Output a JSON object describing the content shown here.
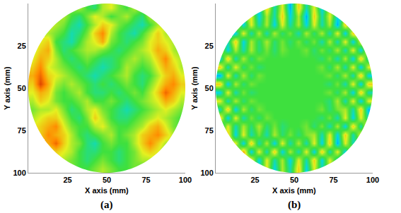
{
  "chart_data": [
    {
      "type": "heatmap",
      "title": "(a)",
      "x_label": "X axis (mm)",
      "y_label": "Y axis (mm)",
      "xlim": [
        0,
        100
      ],
      "ylim": [
        100,
        0
      ],
      "xticks": [
        25,
        50,
        75,
        100
      ],
      "yticks": [
        25,
        50,
        75,
        100
      ],
      "grid": false,
      "zlim": [
        0,
        1
      ],
      "x": [
        2.5,
        7.5,
        12.5,
        17.5,
        22.5,
        27.5,
        32.5,
        37.5,
        42.5,
        47.5,
        52.5,
        57.5,
        62.5,
        67.5,
        72.5,
        77.5,
        82.5,
        87.5,
        92.5,
        97.5
      ],
      "y": [
        2.5,
        7.5,
        12.5,
        17.5,
        22.5,
        27.5,
        32.5,
        37.5,
        42.5,
        47.5,
        52.5,
        57.5,
        62.5,
        67.5,
        72.5,
        77.5,
        82.5,
        87.5,
        92.5,
        97.5
      ],
      "z": [
        [
          null,
          null,
          null,
          null,
          null,
          0.55,
          0.6,
          0.5,
          0.45,
          0.6,
          0.65,
          0.55,
          0.5,
          0.6,
          0.55,
          null,
          null,
          null,
          null,
          null
        ],
        [
          null,
          null,
          null,
          null,
          0.6,
          0.5,
          0.45,
          0.55,
          0.65,
          0.6,
          0.5,
          0.55,
          0.6,
          0.5,
          0.45,
          0.6,
          null,
          null,
          null,
          null
        ],
        [
          null,
          null,
          0.65,
          0.6,
          0.55,
          0.45,
          0.4,
          0.5,
          0.6,
          0.7,
          0.65,
          0.55,
          0.5,
          0.45,
          0.4,
          0.5,
          0.6,
          0.65,
          null,
          null
        ],
        [
          null,
          null,
          0.6,
          0.55,
          0.5,
          0.4,
          0.45,
          0.55,
          0.7,
          0.8,
          0.6,
          0.5,
          0.45,
          0.4,
          0.5,
          0.6,
          0.7,
          0.6,
          null,
          null
        ],
        [
          null,
          0.65,
          0.7,
          0.5,
          0.45,
          0.4,
          0.5,
          0.6,
          0.65,
          0.75,
          0.55,
          0.5,
          0.45,
          0.5,
          0.55,
          0.65,
          0.7,
          0.65,
          0.6,
          null
        ],
        [
          0.6,
          0.7,
          0.75,
          0.55,
          0.45,
          0.5,
          0.55,
          0.6,
          0.6,
          0.55,
          0.5,
          0.45,
          0.5,
          0.55,
          0.6,
          0.65,
          0.75,
          0.7,
          0.6,
          0.55
        ],
        [
          0.65,
          0.75,
          0.7,
          0.6,
          0.5,
          0.45,
          0.5,
          0.55,
          0.5,
          0.45,
          0.45,
          0.5,
          0.55,
          0.6,
          0.55,
          0.6,
          0.7,
          0.8,
          0.65,
          0.6
        ],
        [
          0.7,
          0.8,
          0.65,
          0.6,
          0.55,
          0.5,
          0.45,
          0.5,
          0.45,
          0.4,
          0.45,
          0.5,
          0.6,
          0.55,
          0.5,
          0.55,
          0.65,
          0.75,
          0.7,
          0.6
        ],
        [
          0.75,
          0.85,
          0.7,
          0.65,
          0.6,
          0.55,
          0.5,
          0.45,
          0.4,
          0.45,
          0.5,
          0.55,
          0.6,
          0.5,
          0.45,
          0.5,
          0.6,
          0.7,
          0.75,
          0.65
        ],
        [
          0.7,
          0.9,
          0.75,
          0.6,
          0.55,
          0.6,
          0.55,
          0.5,
          0.45,
          0.5,
          0.45,
          0.5,
          0.55,
          0.5,
          0.45,
          0.55,
          0.65,
          0.75,
          0.8,
          0.7
        ],
        [
          0.65,
          0.75,
          0.7,
          0.55,
          0.5,
          0.55,
          0.6,
          0.5,
          0.45,
          0.45,
          0.5,
          0.45,
          0.5,
          0.55,
          0.5,
          0.6,
          0.7,
          0.85,
          0.75,
          0.65
        ],
        [
          0.6,
          0.7,
          0.65,
          0.55,
          0.5,
          0.5,
          0.55,
          0.6,
          0.5,
          0.5,
          0.55,
          0.5,
          0.45,
          0.5,
          0.55,
          0.6,
          0.65,
          0.75,
          0.7,
          0.6
        ],
        [
          0.55,
          0.6,
          0.6,
          0.65,
          0.55,
          0.45,
          0.5,
          0.6,
          0.65,
          0.55,
          0.5,
          0.45,
          0.4,
          0.45,
          0.5,
          0.55,
          0.6,
          0.65,
          0.6,
          0.55
        ],
        [
          0.6,
          0.65,
          0.7,
          0.7,
          0.6,
          0.5,
          0.45,
          0.55,
          0.7,
          0.6,
          0.5,
          0.45,
          0.45,
          0.5,
          0.55,
          0.6,
          0.65,
          0.6,
          0.55,
          0.5
        ],
        [
          0.65,
          0.7,
          0.75,
          0.8,
          0.65,
          0.55,
          0.5,
          0.5,
          0.6,
          0.65,
          0.55,
          0.5,
          0.5,
          0.55,
          0.6,
          0.7,
          0.75,
          0.65,
          0.55,
          0.5
        ],
        [
          null,
          0.7,
          0.8,
          0.75,
          0.7,
          0.6,
          0.5,
          0.45,
          0.5,
          0.55,
          0.6,
          0.5,
          0.55,
          0.6,
          0.7,
          0.75,
          0.8,
          0.7,
          0.6,
          null
        ],
        [
          null,
          null,
          0.75,
          0.85,
          0.7,
          0.6,
          0.55,
          0.45,
          0.4,
          0.5,
          0.55,
          0.5,
          0.5,
          0.6,
          0.7,
          0.8,
          0.7,
          0.6,
          null,
          null
        ],
        [
          null,
          null,
          0.65,
          0.7,
          0.65,
          0.6,
          0.5,
          0.45,
          0.45,
          0.5,
          0.5,
          0.45,
          0.5,
          0.55,
          0.65,
          0.7,
          0.65,
          0.55,
          null,
          null
        ],
        [
          null,
          null,
          null,
          null,
          0.6,
          0.55,
          0.5,
          0.45,
          0.5,
          0.55,
          0.5,
          0.45,
          0.5,
          0.55,
          0.6,
          0.6,
          null,
          null,
          null,
          null
        ],
        [
          null,
          null,
          null,
          null,
          null,
          0.55,
          0.5,
          0.5,
          0.55,
          0.6,
          0.55,
          0.5,
          0.5,
          0.55,
          0.5,
          null,
          null,
          null,
          null,
          null
        ]
      ]
    },
    {
      "type": "heatmap",
      "title": "(b)",
      "x_label": "X axis (mm)",
      "y_label": "Y axis (mm)",
      "xlim": [
        0,
        100
      ],
      "ylim": [
        100,
        0
      ],
      "xticks": [
        25,
        50,
        75,
        100
      ],
      "yticks": [
        25,
        50,
        75,
        100
      ],
      "grid": false,
      "zlim": [
        0,
        1
      ],
      "x": [
        2.5,
        7.5,
        12.5,
        17.5,
        22.5,
        27.5,
        32.5,
        37.5,
        42.5,
        47.5,
        52.5,
        57.5,
        62.5,
        67.5,
        72.5,
        77.5,
        82.5,
        87.5,
        92.5,
        97.5
      ],
      "y": [
        2.5,
        7.5,
        12.5,
        17.5,
        22.5,
        27.5,
        32.5,
        37.5,
        42.5,
        47.5,
        52.5,
        57.5,
        62.5,
        67.5,
        72.5,
        77.5,
        82.5,
        87.5,
        92.5,
        97.5
      ],
      "z": [
        [
          null,
          null,
          null,
          null,
          null,
          0.35,
          0.7,
          0.4,
          0.65,
          0.3,
          0.7,
          0.4,
          0.65,
          0.35,
          0.6,
          null,
          null,
          null,
          null,
          null
        ],
        [
          null,
          null,
          null,
          null,
          0.65,
          0.35,
          0.6,
          0.4,
          0.7,
          0.35,
          0.6,
          0.3,
          0.7,
          0.4,
          0.65,
          0.35,
          null,
          null,
          null,
          null
        ],
        [
          null,
          null,
          0.7,
          0.35,
          0.65,
          0.4,
          0.6,
          0.35,
          0.65,
          0.4,
          0.6,
          0.35,
          0.65,
          0.4,
          0.6,
          0.3,
          0.7,
          0.4,
          null,
          null
        ],
        [
          null,
          null,
          0.35,
          0.65,
          0.4,
          0.6,
          0.4,
          0.6,
          0.45,
          0.55,
          0.4,
          0.6,
          0.45,
          0.6,
          0.4,
          0.65,
          0.35,
          0.7,
          null,
          null
        ],
        [
          null,
          0.4,
          0.7,
          0.35,
          0.6,
          0.45,
          0.6,
          0.45,
          0.55,
          0.45,
          0.55,
          0.45,
          0.55,
          0.4,
          0.6,
          0.4,
          0.65,
          0.35,
          0.65,
          null
        ],
        [
          0.65,
          0.35,
          0.6,
          0.4,
          0.6,
          0.45,
          0.55,
          0.45,
          0.55,
          0.5,
          0.5,
          0.55,
          0.45,
          0.55,
          0.45,
          0.6,
          0.4,
          0.65,
          0.35,
          0.7
        ],
        [
          0.35,
          0.7,
          0.4,
          0.6,
          0.45,
          0.55,
          0.5,
          0.5,
          0.5,
          0.5,
          0.5,
          0.5,
          0.5,
          0.45,
          0.55,
          0.4,
          0.6,
          0.35,
          0.7,
          0.4
        ],
        [
          0.7,
          0.4,
          0.65,
          0.45,
          0.55,
          0.45,
          0.5,
          0.5,
          0.5,
          0.5,
          0.5,
          0.5,
          0.5,
          0.55,
          0.45,
          0.6,
          0.4,
          0.65,
          0.35,
          0.65
        ],
        [
          0.3,
          0.65,
          0.4,
          0.6,
          0.45,
          0.55,
          0.5,
          0.5,
          0.5,
          0.5,
          0.5,
          0.5,
          0.5,
          0.5,
          0.55,
          0.45,
          0.6,
          0.4,
          0.7,
          0.35
        ],
        [
          0.7,
          0.35,
          0.6,
          0.45,
          0.55,
          0.5,
          0.5,
          0.5,
          0.5,
          0.5,
          0.5,
          0.5,
          0.5,
          0.5,
          0.45,
          0.55,
          0.4,
          0.65,
          0.35,
          0.7
        ],
        [
          0.35,
          0.65,
          0.4,
          0.55,
          0.45,
          0.5,
          0.5,
          0.5,
          0.5,
          0.5,
          0.5,
          0.5,
          0.5,
          0.5,
          0.55,
          0.45,
          0.6,
          0.35,
          0.7,
          0.4
        ],
        [
          0.65,
          0.4,
          0.6,
          0.45,
          0.55,
          0.5,
          0.5,
          0.5,
          0.5,
          0.5,
          0.5,
          0.5,
          0.5,
          0.5,
          0.45,
          0.6,
          0.4,
          0.65,
          0.35,
          0.65
        ],
        [
          0.4,
          0.7,
          0.35,
          0.6,
          0.45,
          0.55,
          0.5,
          0.5,
          0.5,
          0.5,
          0.5,
          0.5,
          0.5,
          0.55,
          0.45,
          0.55,
          0.6,
          0.4,
          0.7,
          0.3
        ],
        [
          0.7,
          0.35,
          0.65,
          0.4,
          0.55,
          0.45,
          0.55,
          0.5,
          0.5,
          0.5,
          0.5,
          0.5,
          0.5,
          0.45,
          0.55,
          0.4,
          0.65,
          0.35,
          0.65,
          0.4
        ],
        [
          0.35,
          0.65,
          0.4,
          0.6,
          0.45,
          0.6,
          0.45,
          0.55,
          0.45,
          0.5,
          0.5,
          0.55,
          0.45,
          0.55,
          0.4,
          0.6,
          0.35,
          0.7,
          0.4,
          0.75
        ],
        [
          null,
          0.7,
          0.35,
          0.65,
          0.4,
          0.55,
          0.4,
          0.6,
          0.45,
          0.55,
          0.45,
          0.55,
          0.6,
          0.4,
          0.65,
          0.35,
          0.7,
          0.4,
          0.65,
          null
        ],
        [
          null,
          null,
          0.65,
          0.35,
          0.7,
          0.4,
          0.6,
          0.35,
          0.65,
          0.4,
          0.6,
          0.4,
          0.65,
          0.35,
          0.7,
          0.3,
          0.65,
          0.4,
          null,
          null
        ],
        [
          null,
          null,
          0.4,
          0.75,
          0.35,
          0.65,
          0.4,
          0.7,
          0.35,
          0.6,
          0.4,
          0.65,
          0.35,
          0.7,
          0.4,
          0.65,
          0.35,
          0.7,
          null,
          null
        ],
        [
          null,
          null,
          null,
          null,
          0.7,
          0.35,
          0.65,
          0.4,
          0.6,
          0.35,
          0.65,
          0.4,
          0.7,
          0.35,
          0.65,
          0.4,
          null,
          null,
          null,
          null
        ],
        [
          null,
          null,
          null,
          null,
          null,
          0.4,
          0.65,
          0.35,
          0.6,
          0.4,
          0.7,
          0.35,
          0.65,
          0.4,
          0.6,
          null,
          null,
          null,
          null,
          null
        ]
      ]
    }
  ]
}
